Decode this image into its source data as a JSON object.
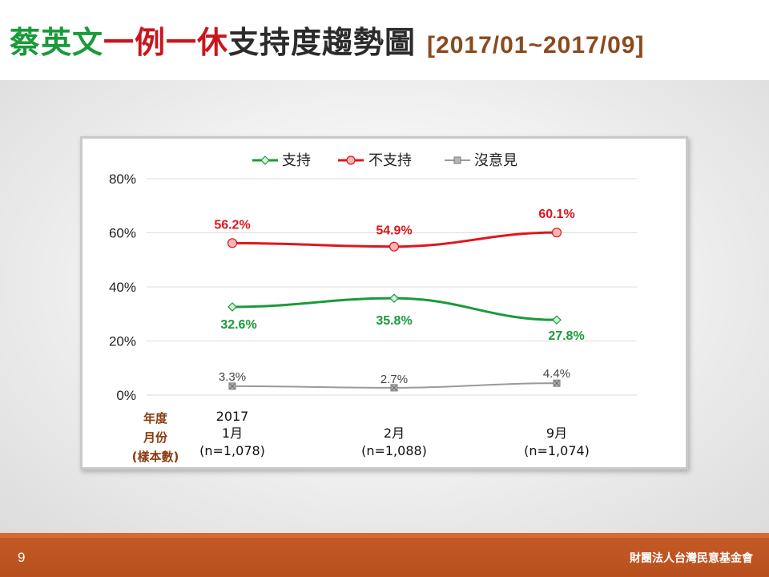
{
  "slide": {
    "title_parts": [
      "蔡英文",
      "一例一休",
      "支持度趨勢圖"
    ],
    "period": "[2017/01~2017/09]",
    "page_number": "9",
    "organization": "財團法人台灣民意基金會"
  },
  "colors": {
    "title_green": "#1a9a3a",
    "title_red": "#c8161d",
    "period_brown": "#8b4a1e",
    "footer": "#c45a26"
  },
  "chart_data": {
    "type": "line",
    "title": "",
    "xlabel": "",
    "ylabel": "",
    "ylim": [
      0,
      80
    ],
    "y_ticks": [
      "0%",
      "20%",
      "40%",
      "60%",
      "80%"
    ],
    "grid": true,
    "legend_position": "top",
    "x_header_lines": [
      "年度",
      "月份",
      "(樣本數)"
    ],
    "categories": [
      {
        "year": "2017",
        "month": "1月",
        "n": "(n=1,078)"
      },
      {
        "year": "",
        "month": "2月",
        "n": "(n=1,088)"
      },
      {
        "year": "",
        "month": "9月",
        "n": "(n=1,074)"
      }
    ],
    "series": [
      {
        "name": "支持",
        "color": "#1a9a3a",
        "marker": "diamond",
        "values": [
          32.6,
          35.8,
          27.8
        ],
        "labels": [
          "32.6%",
          "35.8%",
          "27.8%"
        ],
        "label_position": "below"
      },
      {
        "name": "不支持",
        "color": "#e0161d",
        "marker": "circle",
        "values": [
          56.2,
          54.9,
          60.1
        ],
        "labels": [
          "56.2%",
          "54.9%",
          "60.1%"
        ],
        "label_position": "above"
      },
      {
        "name": "沒意見",
        "color": "#9a9a9a",
        "marker": "square-x",
        "values": [
          3.3,
          2.7,
          4.4
        ],
        "labels": [
          "3.3%",
          "2.7%",
          "4.4%"
        ],
        "label_position": "above"
      }
    ]
  }
}
